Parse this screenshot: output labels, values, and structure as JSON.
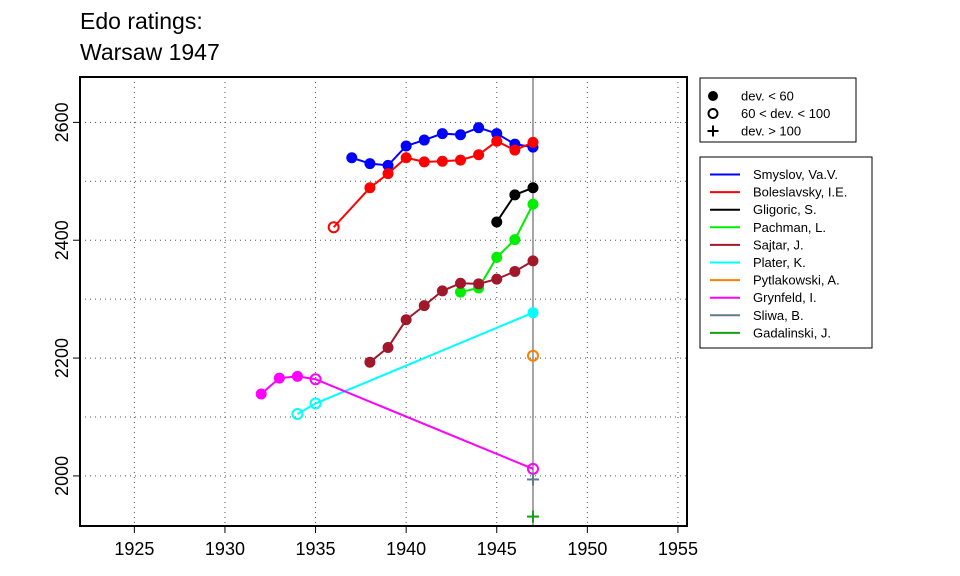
{
  "chart_data": {
    "type": "line",
    "title_lines": [
      "Edo ratings:",
      "Warsaw 1947"
    ],
    "xlabel": "",
    "ylabel": "",
    "xlim": [
      1922,
      1955.5
    ],
    "ylim": [
      1915,
      2677
    ],
    "x_ticks": [
      1925,
      1930,
      1935,
      1940,
      1945,
      1950,
      1955
    ],
    "y_ticks": [
      2000,
      2200,
      2400,
      2600
    ],
    "x_ticks_grid": [
      1925,
      1930,
      1935,
      1940,
      1945,
      1950,
      1955
    ],
    "y_ticks_grid": [
      2000,
      2100,
      2200,
      2300,
      2400,
      2500,
      2600
    ],
    "grid": true,
    "vline_x": 1947,
    "legend_deviation": {
      "placement": "top-right",
      "items": [
        {
          "label": "dev. < 60",
          "marker": "filled-circle"
        },
        {
          "label": "60 < dev. < 100",
          "marker": "open-circle"
        },
        {
          "label": "dev. > 100",
          "marker": "plus"
        }
      ]
    },
    "series": [
      {
        "name": "Smyslov, Va.V.",
        "color": "#0000ff",
        "points": [
          [
            1937,
            2540,
            "f"
          ],
          [
            1938,
            2530,
            "f"
          ],
          [
            1939,
            2527,
            "f"
          ],
          [
            1940,
            2560,
            "f"
          ],
          [
            1941,
            2570,
            "f"
          ],
          [
            1942,
            2581,
            "f"
          ],
          [
            1943,
            2579,
            "f"
          ],
          [
            1944,
            2591,
            "f"
          ],
          [
            1945,
            2581,
            "f"
          ],
          [
            1946,
            2563,
            "f"
          ],
          [
            1947,
            2558,
            "f"
          ]
        ]
      },
      {
        "name": "Boleslavsky, I.E.",
        "color": "#ff0000",
        "points": [
          [
            1936,
            2422,
            "o"
          ],
          [
            1938,
            2489,
            "f"
          ],
          [
            1939,
            2513,
            "f"
          ],
          [
            1940,
            2540,
            "f"
          ],
          [
            1941,
            2533,
            "f"
          ],
          [
            1942,
            2534,
            "f"
          ],
          [
            1943,
            2536,
            "f"
          ],
          [
            1944,
            2545,
            "f"
          ],
          [
            1945,
            2568,
            "f"
          ],
          [
            1946,
            2553,
            "f"
          ],
          [
            1947,
            2566,
            "f"
          ]
        ]
      },
      {
        "name": "Gligoric, S.",
        "color": "#000000",
        "points": [
          [
            1945,
            2431,
            "f"
          ],
          [
            1946,
            2477,
            "f"
          ],
          [
            1947,
            2489,
            "f"
          ]
        ]
      },
      {
        "name": "Pachman, L.",
        "color": "#00ee00",
        "points": [
          [
            1943,
            2312,
            "f"
          ],
          [
            1944,
            2319,
            "f"
          ],
          [
            1945,
            2371,
            "f"
          ],
          [
            1946,
            2401,
            "f"
          ],
          [
            1947,
            2461,
            "f"
          ]
        ]
      },
      {
        "name": "Sajtar, J.",
        "color": "#a0182a",
        "points": [
          [
            1938,
            2193,
            "f"
          ],
          [
            1939,
            2218,
            "f"
          ],
          [
            1940,
            2265,
            "f"
          ],
          [
            1941,
            2289,
            "f"
          ],
          [
            1942,
            2314,
            "f"
          ],
          [
            1943,
            2327,
            "f"
          ],
          [
            1944,
            2326,
            "f"
          ],
          [
            1945,
            2334,
            "f"
          ],
          [
            1946,
            2347,
            "f"
          ],
          [
            1947,
            2365,
            "f"
          ]
        ]
      },
      {
        "name": "Plater, K.",
        "color": "#00ffff",
        "points": [
          [
            1934,
            2105,
            "o"
          ],
          [
            1935,
            2123,
            "o"
          ],
          [
            1947,
            2277,
            "f"
          ]
        ]
      },
      {
        "name": "Pytlakowski, A.",
        "color": "#ff7f00",
        "points": [
          [
            1947,
            2204,
            "o"
          ]
        ]
      },
      {
        "name": "Grynfeld, I.",
        "color": "#ff00ff",
        "points": [
          [
            1932,
            2139,
            "f"
          ],
          [
            1933,
            2166,
            "f"
          ],
          [
            1934,
            2169,
            "f"
          ],
          [
            1935,
            2164,
            "o"
          ],
          [
            1947,
            2012,
            "o"
          ]
        ]
      },
      {
        "name": "Sliwa, B.",
        "color": "#607b8b",
        "points": [
          [
            1947,
            1994,
            "p"
          ]
        ]
      },
      {
        "name": "Gadalinski, J.",
        "color": "#14a014",
        "points": [
          [
            1947,
            1931,
            "p"
          ]
        ]
      }
    ]
  }
}
